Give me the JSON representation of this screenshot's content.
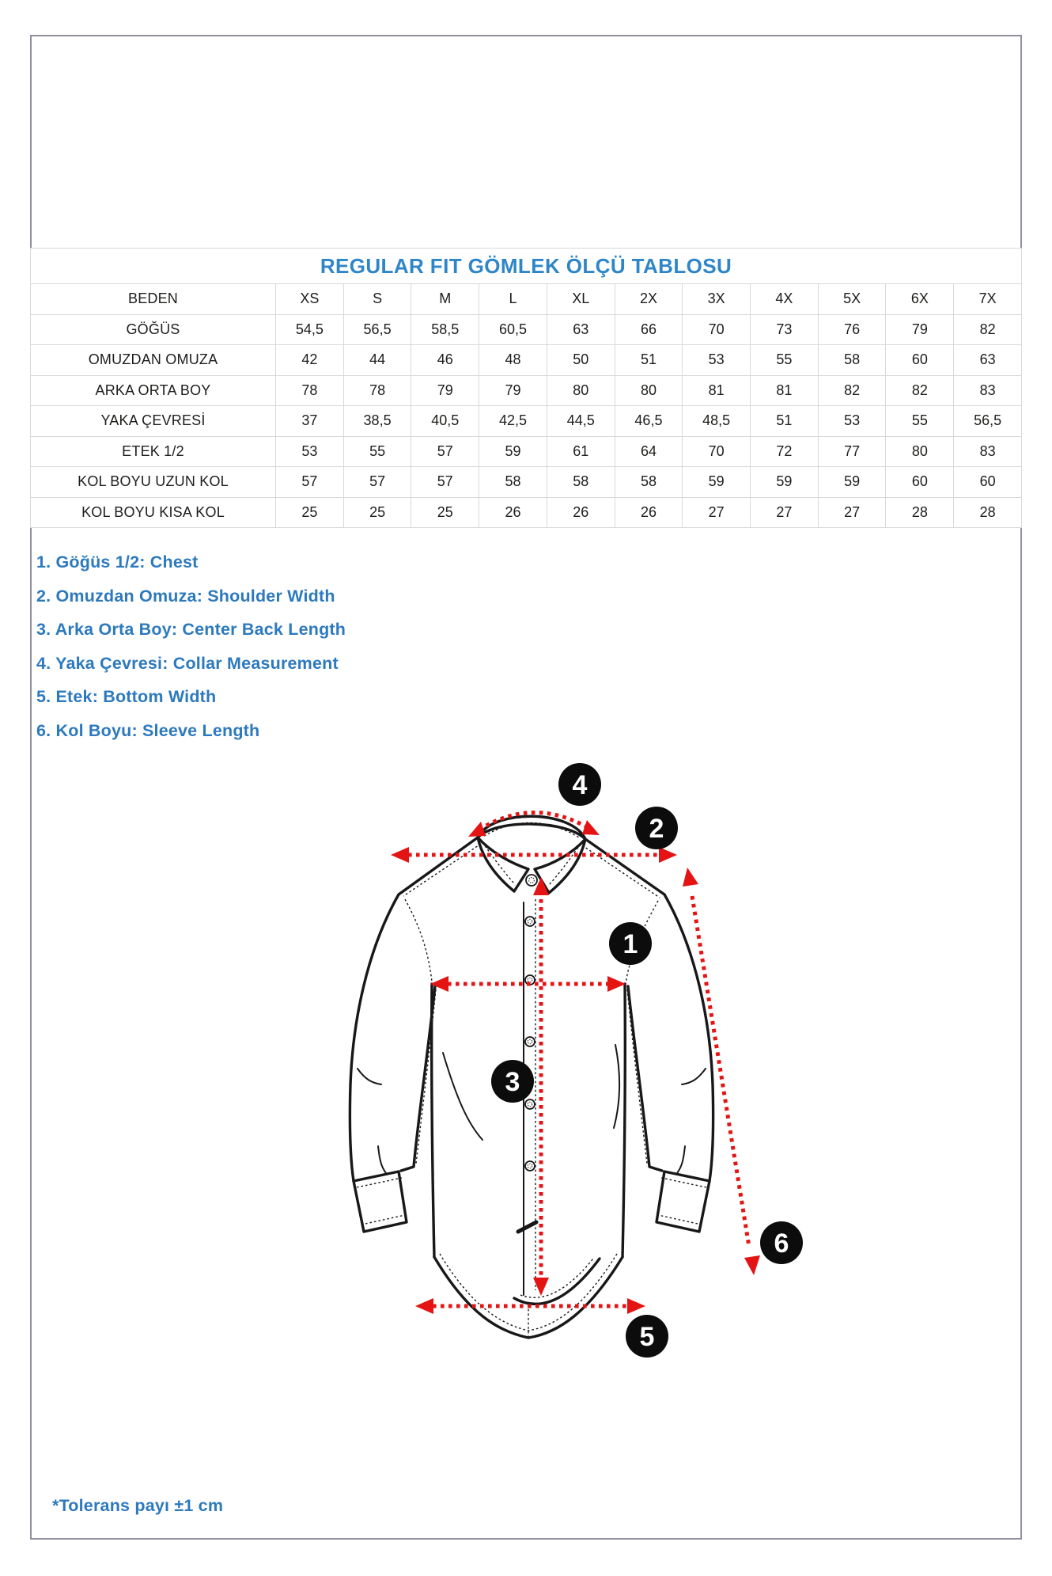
{
  "table": {
    "title": "REGULAR FIT GÖMLEK ÖLÇÜ TABLOSU",
    "header_label": "BEDEN",
    "sizes": [
      "XS",
      "S",
      "M",
      "L",
      "XL",
      "2X",
      "3X",
      "4X",
      "5X",
      "6X",
      "7X"
    ],
    "rows": [
      {
        "label": "GÖĞÜS",
        "values": [
          "54,5",
          "56,5",
          "58,5",
          "60,5",
          "63",
          "66",
          "70",
          "73",
          "76",
          "79",
          "82"
        ]
      },
      {
        "label": "OMUZDAN OMUZA",
        "values": [
          "42",
          "44",
          "46",
          "48",
          "50",
          "51",
          "53",
          "55",
          "58",
          "60",
          "63"
        ]
      },
      {
        "label": "ARKA ORTA BOY",
        "values": [
          "78",
          "78",
          "79",
          "79",
          "80",
          "80",
          "81",
          "81",
          "82",
          "82",
          "83"
        ]
      },
      {
        "label": "YAKA ÇEVRESİ",
        "values": [
          "37",
          "38,5",
          "40,5",
          "42,5",
          "44,5",
          "46,5",
          "48,5",
          "51",
          "53",
          "55",
          "56,5"
        ]
      },
      {
        "label": "ETEK 1/2",
        "values": [
          "53",
          "55",
          "57",
          "59",
          "61",
          "64",
          "70",
          "72",
          "77",
          "80",
          "83"
        ]
      },
      {
        "label": "KOL BOYU UZUN KOL",
        "values": [
          "57",
          "57",
          "57",
          "58",
          "58",
          "58",
          "59",
          "59",
          "59",
          "60",
          "60"
        ]
      },
      {
        "label": "KOL BOYU KISA KOL",
        "values": [
          "25",
          "25",
          "25",
          "26",
          "26",
          "26",
          "27",
          "27",
          "27",
          "28",
          "28"
        ]
      }
    ]
  },
  "legend": {
    "items": [
      "1. Göğüs 1/2: Chest",
      "2. Omuzdan Omuza: Shoulder Width",
      "3. Arka Orta Boy: Center Back Length",
      "4. Yaka Çevresi: Collar Measurement",
      "5. Etek: Bottom Width",
      "6. Kol Boyu: Sleeve Length"
    ]
  },
  "diagram": {
    "markers": {
      "chest": "1",
      "shoulder": "2",
      "back": "3",
      "collar": "4",
      "hem": "5",
      "sleeve": "6"
    }
  },
  "note": "*Tolerans payı ±1 cm",
  "colors": {
    "title_blue": "#2E86C9",
    "legend_blue": "#2C79BE",
    "arrow_red": "#E51414",
    "marker_black": "#0C0C0C",
    "table_border": "#D9D9D9",
    "frame_gray": "#8F8F9E"
  }
}
